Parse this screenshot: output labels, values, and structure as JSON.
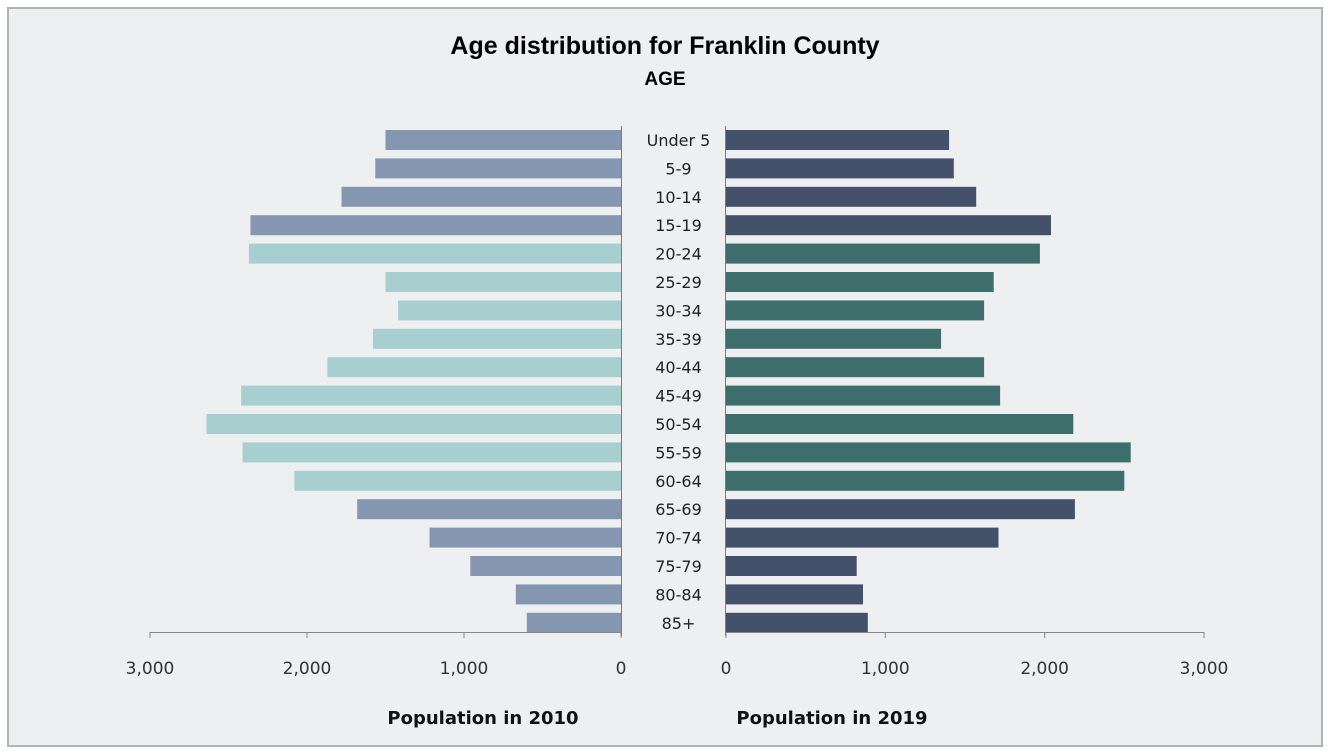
{
  "chart_data": {
    "type": "bar",
    "title": "Age distribution for Franklin County",
    "subtitle": "AGE",
    "categories": [
      "Under 5",
      "5-9",
      "10-14",
      "15-19",
      "20-24",
      "25-29",
      "30-34",
      "35-39",
      "40-44",
      "45-49",
      "50-54",
      "55-59",
      "60-64",
      "65-69",
      "70-74",
      "75-79",
      "80-84",
      "85+"
    ],
    "series": [
      {
        "name": "Population in 2010",
        "side": "left",
        "values": [
          1500,
          1565,
          1780,
          2360,
          2370,
          1500,
          1420,
          1580,
          1870,
          2420,
          2640,
          2410,
          2080,
          1680,
          1220,
          960,
          670,
          600
        ]
      },
      {
        "name": "Population in 2019",
        "side": "right",
        "values": [
          1400,
          1430,
          1570,
          2040,
          1970,
          1680,
          1620,
          1350,
          1620,
          1720,
          2180,
          2540,
          2500,
          2190,
          1710,
          820,
          860,
          890
        ]
      }
    ],
    "highlight_categories": [
      "20-24",
      "25-29",
      "30-34",
      "35-39",
      "40-44",
      "45-49",
      "50-54",
      "55-59",
      "60-64"
    ],
    "xlim": [
      0,
      3000
    ],
    "x_ticks": [
      "3,000",
      "2,000",
      "1,000",
      "0"
    ],
    "x_ticks_right": [
      "0",
      "1,000",
      "2,000",
      "3,000"
    ],
    "xlabel_left": "Population in 2010",
    "xlabel_right": "Population in 2019",
    "colors": {
      "left_default": "#8596b1",
      "left_highlight": "#a8cfcf",
      "right_default": "#44516b",
      "right_highlight": "#3d6e6c",
      "background": "#eeeff1",
      "border": "#b3b3b3"
    }
  }
}
